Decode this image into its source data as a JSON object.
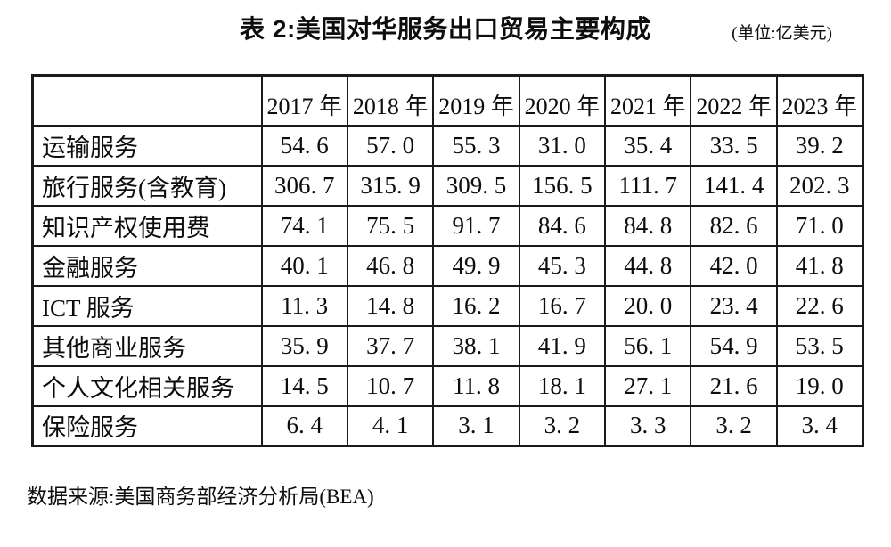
{
  "figure": {
    "title": "表 2:美国对华服务出口贸易主要构成",
    "unit_note": "(单位:亿美元)",
    "source_note": "数据来源:美国商务部经济分析局(BEA)"
  },
  "table": {
    "corner_header": "",
    "col_headers": [
      "2017 年",
      "2018 年",
      "2019 年",
      "2020 年",
      "2021 年",
      "2022 年",
      "2023 年"
    ],
    "rows": [
      {
        "label": "运输服务",
        "values": [
          "54. 6",
          "57. 0",
          "55. 3",
          "31. 0",
          "35. 4",
          "33. 5",
          "39. 2"
        ]
      },
      {
        "label": "旅行服务(含教育)",
        "values": [
          "306. 7",
          "315. 9",
          "309. 5",
          "156. 5",
          "111. 7",
          "141. 4",
          "202. 3"
        ]
      },
      {
        "label": "知识产权使用费",
        "values": [
          "74. 1",
          "75. 5",
          "91. 7",
          "84. 6",
          "84. 8",
          "82. 6",
          "71. 0"
        ]
      },
      {
        "label": "金融服务",
        "values": [
          "40. 1",
          "46. 8",
          "49. 9",
          "45. 3",
          "44. 8",
          "42. 0",
          "41. 8"
        ]
      },
      {
        "label": "ICT 服务",
        "values": [
          "11. 3",
          "14. 8",
          "16. 2",
          "16. 7",
          "20. 0",
          "23. 4",
          "22. 6"
        ]
      },
      {
        "label": "其他商业服务",
        "values": [
          "35. 9",
          "37. 7",
          "38. 1",
          "41. 9",
          "56. 1",
          "54. 9",
          "53. 5"
        ]
      },
      {
        "label": "个人文化相关服务",
        "values": [
          "14. 5",
          "10. 7",
          "11. 8",
          "18. 1",
          "27. 1",
          "21. 6",
          "19. 0"
        ]
      },
      {
        "label": "保险服务",
        "values": [
          "6. 4",
          "4. 1",
          "3. 1",
          "3. 2",
          "3. 3",
          "3. 2",
          "3. 4"
        ]
      }
    ]
  },
  "chart_data": {
    "type": "table",
    "title": "表 2:美国对华服务出口贸易主要构成",
    "unit": "亿美元",
    "categories": [
      "2017",
      "2018",
      "2019",
      "2020",
      "2021",
      "2022",
      "2023"
    ],
    "series": [
      {
        "name": "运输服务",
        "values": [
          54.6,
          57.0,
          55.3,
          31.0,
          35.4,
          33.5,
          39.2
        ]
      },
      {
        "name": "旅行服务(含教育)",
        "values": [
          306.7,
          315.9,
          309.5,
          156.5,
          111.7,
          141.4,
          202.3
        ]
      },
      {
        "name": "知识产权使用费",
        "values": [
          74.1,
          75.5,
          91.7,
          84.6,
          84.8,
          82.6,
          71.0
        ]
      },
      {
        "name": "金融服务",
        "values": [
          40.1,
          46.8,
          49.9,
          45.3,
          44.8,
          42.0,
          41.8
        ]
      },
      {
        "name": "ICT 服务",
        "values": [
          11.3,
          14.8,
          16.2,
          16.7,
          20.0,
          23.4,
          22.6
        ]
      },
      {
        "name": "其他商业服务",
        "values": [
          35.9,
          37.7,
          38.1,
          41.9,
          56.1,
          54.9,
          53.5
        ]
      },
      {
        "name": "个人文化相关服务",
        "values": [
          14.5,
          10.7,
          11.8,
          18.1,
          27.1,
          21.6,
          19.0
        ]
      },
      {
        "name": "保险服务",
        "values": [
          6.4,
          4.1,
          3.1,
          3.2,
          3.3,
          3.2,
          3.4
        ]
      }
    ],
    "source": "数据来源:美国商务部经济分析局(BEA)",
    "colors": {
      "background": "#ffffff",
      "text": "#0d0d0d",
      "border": "#1a1a1a"
    }
  }
}
